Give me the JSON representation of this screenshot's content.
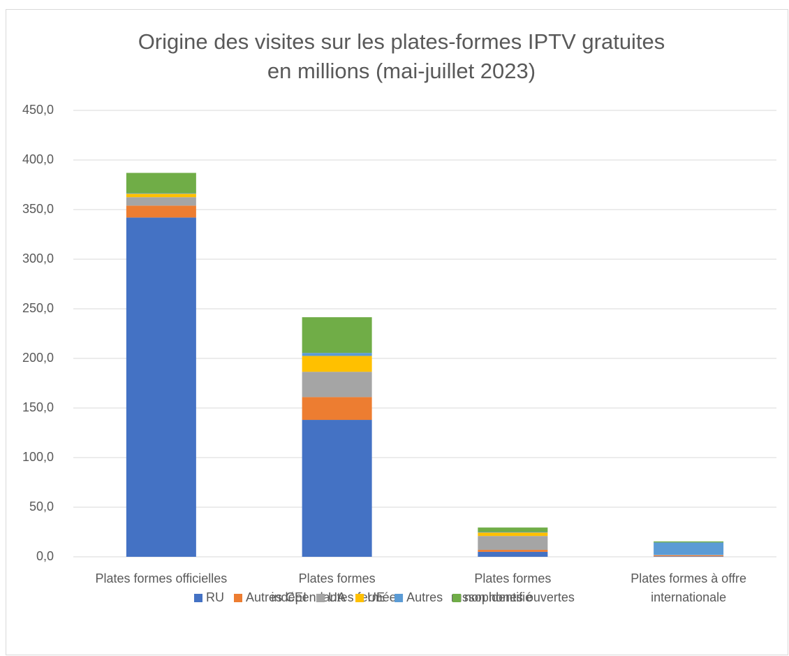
{
  "chart_data": {
    "type": "stacked_bar",
    "title": [
      "Origine des visites sur les plates-formes IPTV gratuites",
      "en millions (mai-juillet 2023)"
    ],
    "categories": [
      [
        "Plates formes officielles"
      ],
      [
        "Plates formes",
        "indépendantes fermées"
      ],
      [
        "Plates formes",
        "russophones ouvertes"
      ],
      [
        "Plates formes à offre",
        "internationale"
      ]
    ],
    "series": [
      {
        "name": "RU",
        "color": "#4472c4",
        "values": [
          342,
          138,
          5,
          0.5
        ]
      },
      {
        "name": "Autres CEI",
        "color": "#ed7d31",
        "values": [
          12,
          23,
          2,
          1
        ]
      },
      {
        "name": "UA",
        "color": "#a5a5a5",
        "values": [
          8.5,
          25.5,
          14,
          0.5
        ]
      },
      {
        "name": "UE",
        "color": "#ffc000",
        "values": [
          3.5,
          16,
          3.5,
          0
        ]
      },
      {
        "name": "Autres",
        "color": "#5b9bd5",
        "values": [
          0.5,
          3,
          0.5,
          12.5
        ]
      },
      {
        "name": "non identifié",
        "color": "#70ad47",
        "values": [
          20.5,
          36,
          4.5,
          1
        ]
      }
    ],
    "ylim": [
      0,
      450
    ],
    "yticks": [
      {
        "value": 0,
        "label": "0,0"
      },
      {
        "value": 50,
        "label": "50,0"
      },
      {
        "value": 100,
        "label": "100,0"
      },
      {
        "value": 150,
        "label": "150,0"
      },
      {
        "value": 200,
        "label": "200,0"
      },
      {
        "value": 250,
        "label": "250,0"
      },
      {
        "value": 300,
        "label": "300,0"
      },
      {
        "value": 350,
        "label": "350,0"
      },
      {
        "value": 400,
        "label": "400,0"
      },
      {
        "value": 450,
        "label": "450,0"
      }
    ],
    "grid": true,
    "legend": "bottom"
  }
}
